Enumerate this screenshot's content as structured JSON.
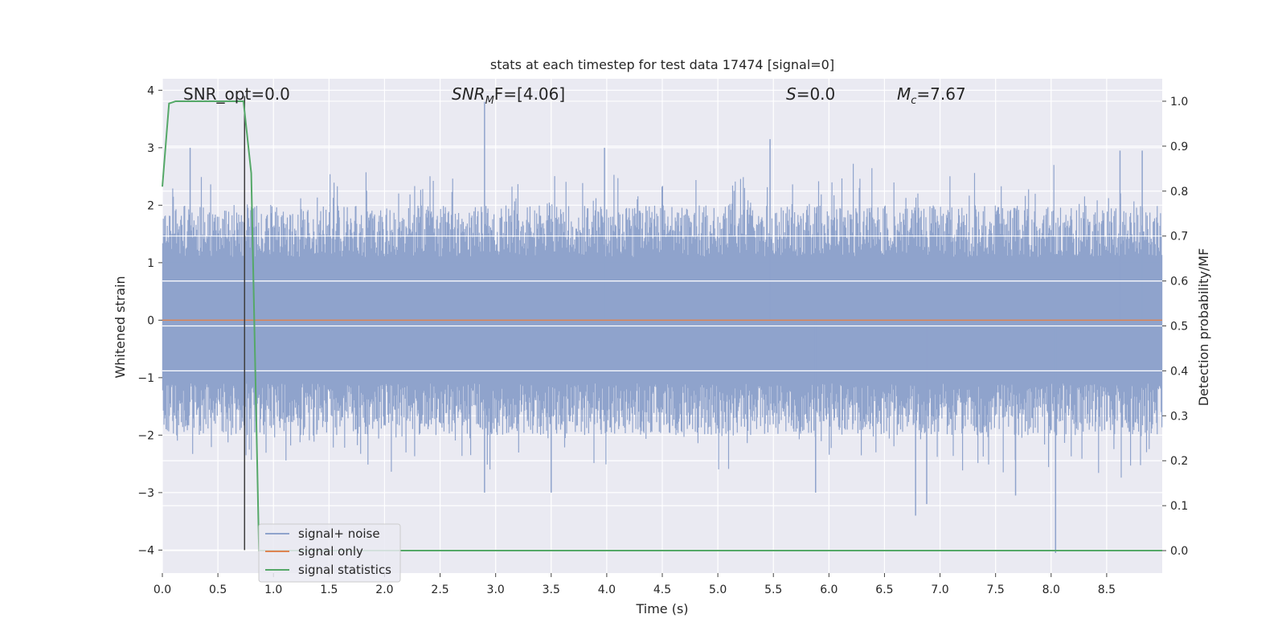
{
  "chart_data": {
    "type": "line",
    "title": "stats at each timestep for test data 17474 [signal=0]",
    "xlabel": "Time (s)",
    "ylabel_left": "Whitened strain",
    "ylabel_right": "Detection probability/MF",
    "xlim": [
      0,
      9.0
    ],
    "ylim_left": [
      -4.4,
      4.2
    ],
    "ylim_right": [
      -0.05,
      1.05
    ],
    "grid": true,
    "xticks": [
      0.0,
      0.5,
      1.0,
      1.5,
      2.0,
      2.5,
      3.0,
      3.5,
      4.0,
      4.5,
      5.0,
      5.5,
      6.0,
      6.5,
      7.0,
      7.5,
      8.0,
      8.5
    ],
    "xtick_labels": [
      "0.0",
      "0.5",
      "1.0",
      "1.5",
      "2.0",
      "2.5",
      "3.0",
      "3.5",
      "4.0",
      "4.5",
      "5.0",
      "5.5",
      "6.0",
      "6.5",
      "7.0",
      "7.5",
      "8.0",
      "8.5"
    ],
    "yticks_left": [
      -4,
      -3,
      -2,
      -1,
      0,
      1,
      2,
      3,
      4
    ],
    "ytick_labels_left": [
      "−4",
      "−3",
      "−2",
      "−1",
      "0",
      "1",
      "2",
      "3",
      "4"
    ],
    "yticks_right": [
      0.0,
      0.1,
      0.2,
      0.3,
      0.4,
      0.5,
      0.6,
      0.7,
      0.8,
      0.9,
      1.0
    ],
    "ytick_labels_right": [
      "0.0",
      "0.1",
      "0.2",
      "0.3",
      "0.4",
      "0.5",
      "0.6",
      "0.7",
      "0.8",
      "0.9",
      "1.0"
    ],
    "annotations": {
      "snr_opt": "SNR_opt=0.0",
      "snr_mf_symbol": "SNR",
      "snr_mf_sub": "M",
      "snr_mf_rest": "F=[4.06]",
      "s_symbol": "S",
      "s_rest": "=0.0",
      "mc_symbol": "M",
      "mc_sub": "c",
      "mc_rest": "=7.67"
    },
    "series": [
      {
        "name": "signal+ noise",
        "color": "#8fa3cc",
        "axis": "left",
        "description": "whitened strain noise, roughly within ±2.5 with spikes",
        "spikes": [
          {
            "x": 0.25,
            "y": 3.0
          },
          {
            "x": 2.9,
            "y": 3.8
          },
          {
            "x": 2.9,
            "y": -3.0
          },
          {
            "x": 3.5,
            "y": -3.0
          },
          {
            "x": 3.98,
            "y": 3.0
          },
          {
            "x": 5.47,
            "y": 3.15
          },
          {
            "x": 5.88,
            "y": -3.0
          },
          {
            "x": 6.78,
            "y": -3.4
          },
          {
            "x": 6.88,
            "y": -3.2
          },
          {
            "x": 7.68,
            "y": -3.05
          },
          {
            "x": 8.04,
            "y": -4.05
          },
          {
            "x": 8.82,
            "y": 2.95
          },
          {
            "x": 8.62,
            "y": 2.95
          }
        ]
      },
      {
        "name": "signal only",
        "color": "#dd8452",
        "axis": "left",
        "x": [
          0.0,
          9.0
        ],
        "y": [
          0.0,
          0.0
        ]
      },
      {
        "name": "signal statistics",
        "color": "#55a868",
        "axis": "right",
        "x": [
          0.0,
          0.06,
          0.12,
          0.3,
          0.5,
          0.73,
          0.8,
          0.87,
          0.9,
          9.0
        ],
        "y": [
          0.81,
          0.995,
          1.0,
          1.0,
          1.0,
          1.0,
          0.84,
          0.0,
          0.0,
          0.0
        ]
      },
      {
        "name": "marker",
        "color": "#3d3d3d",
        "axis": "left",
        "x": [
          0.74,
          0.74
        ],
        "y": [
          -4.0,
          3.9
        ]
      }
    ],
    "legend": {
      "location": "lower-left",
      "entries": [
        {
          "label": "signal+ noise",
          "color": "#8fa3cc"
        },
        {
          "label": "signal only",
          "color": "#dd8452"
        },
        {
          "label": "signal statistics",
          "color": "#55a868"
        }
      ]
    },
    "colors": {
      "plot_background": "#eaeaf2",
      "grid": "#ffffff",
      "text": "#262626"
    }
  }
}
